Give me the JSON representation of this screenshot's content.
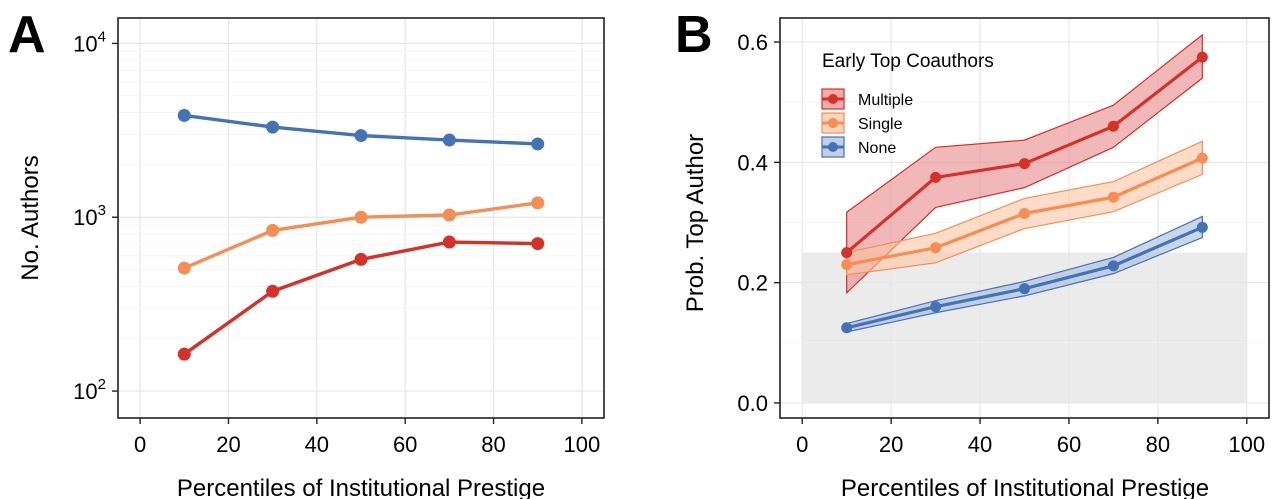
{
  "chart_data": [
    {
      "panel": "A",
      "type": "line",
      "xlabel": "Percentiles of Institutional Prestige",
      "ylabel": "No. Authors",
      "yscale": "log",
      "xlim": [
        -5,
        105
      ],
      "ylim": [
        70,
        14000
      ],
      "xticks": [
        0,
        20,
        40,
        60,
        80,
        100
      ],
      "yticks": [
        {
          "value": 100,
          "base": "10",
          "exp": "2"
        },
        {
          "value": 1000,
          "base": "10",
          "exp": "3"
        },
        {
          "value": 10000,
          "base": "10",
          "exp": "4"
        }
      ],
      "grid": true,
      "x": [
        10,
        30,
        50,
        70,
        90
      ],
      "series": [
        {
          "color": "#4272b8",
          "values": [
            3850,
            3300,
            2950,
            2780,
            2640
          ]
        },
        {
          "color": "#f68e54",
          "values": [
            510,
            840,
            1000,
            1030,
            1210
          ]
        },
        {
          "color": "#d73027",
          "values": [
            163,
            375,
            572,
            720,
            705
          ]
        }
      ]
    },
    {
      "panel": "B",
      "type": "line",
      "xlabel": "Percentiles of Institutional Prestige",
      "ylabel": "Prob. Top Author",
      "xlim": [
        -5,
        105
      ],
      "ylim": [
        -0.025,
        0.64
      ],
      "xticks": [
        0,
        20,
        40,
        60,
        80,
        100
      ],
      "yticks": [
        "0.0",
        "0.2",
        "0.4",
        "0.6"
      ],
      "grid": true,
      "shaded_region": {
        "x": [
          0,
          100
        ],
        "y": [
          0,
          0.25
        ],
        "color": "#ebebeb"
      },
      "legend": {
        "title": "Early Top Coauthors",
        "position": "top-left"
      },
      "x": [
        10,
        30,
        50,
        70,
        90
      ],
      "series": [
        {
          "name": "Multiple",
          "color": "#d73027",
          "fill": "#e8888a",
          "values": [
            0.25,
            0.375,
            0.398,
            0.46,
            0.575
          ],
          "lower": [
            0.183,
            0.325,
            0.358,
            0.425,
            0.54
          ],
          "upper": [
            0.317,
            0.425,
            0.437,
            0.495,
            0.612
          ]
        },
        {
          "name": "Single",
          "color": "#f68e54",
          "fill": "#fbc4a3",
          "values": [
            0.23,
            0.258,
            0.315,
            0.342,
            0.407
          ],
          "lower": [
            0.213,
            0.233,
            0.29,
            0.318,
            0.38
          ],
          "upper": [
            0.25,
            0.282,
            0.34,
            0.368,
            0.435
          ]
        },
        {
          "name": "None",
          "color": "#4272b8",
          "fill": "#a7bcdd",
          "values": [
            0.125,
            0.16,
            0.19,
            0.228,
            0.292
          ],
          "lower": [
            0.118,
            0.15,
            0.178,
            0.215,
            0.275
          ],
          "upper": [
            0.132,
            0.17,
            0.202,
            0.242,
            0.31
          ]
        }
      ]
    }
  ]
}
